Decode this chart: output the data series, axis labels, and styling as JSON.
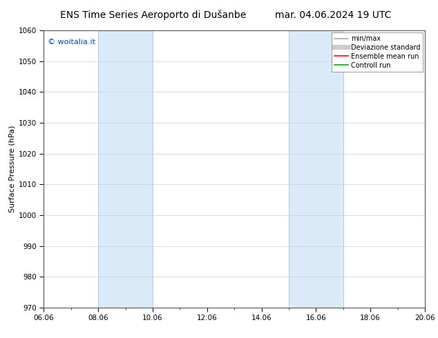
{
  "title_left": "ENS Time Series Aeroporto di Dušanbe",
  "title_right": "mar. 04.06.2024 19 UTC",
  "ylabel": "Surface Pressure (hPa)",
  "ylim": [
    970,
    1060
  ],
  "yticks": [
    970,
    980,
    990,
    1000,
    1010,
    1020,
    1030,
    1040,
    1050,
    1060
  ],
  "xlim_num": [
    0,
    14
  ],
  "xtick_labels": [
    "06.06",
    "08.06",
    "10.06",
    "12.06",
    "14.06",
    "16.06",
    "18.06",
    "20.06"
  ],
  "xtick_positions": [
    0,
    2,
    4,
    6,
    8,
    10,
    12,
    14
  ],
  "shaded_regions": [
    {
      "xstart": 2.0,
      "xend": 4.0,
      "color": "#daeaf8",
      "border": "#b0cce8"
    },
    {
      "xstart": 9.0,
      "xend": 11.0,
      "color": "#daeaf8",
      "border": "#b0cce8"
    }
  ],
  "watermark": "© woitalia.it",
  "watermark_color": "#0044cc",
  "legend_items": [
    {
      "label": "min/max",
      "color": "#aaaaaa",
      "lw": 1.2,
      "style": "-"
    },
    {
      "label": "Deviazione standard",
      "color": "#cccccc",
      "lw": 5,
      "style": "-"
    },
    {
      "label": "Ensemble mean run",
      "color": "#ff0000",
      "lw": 1.2,
      "style": "-"
    },
    {
      "label": "Controll run",
      "color": "#00aa00",
      "lw": 1.2,
      "style": "-"
    }
  ],
  "bg_color": "#ffffff",
  "plot_bg_color": "#ffffff",
  "grid_color": "#cccccc",
  "title_fontsize": 10,
  "tick_fontsize": 7.5,
  "ylabel_fontsize": 8,
  "legend_fontsize": 7,
  "watermark_fontsize": 8
}
